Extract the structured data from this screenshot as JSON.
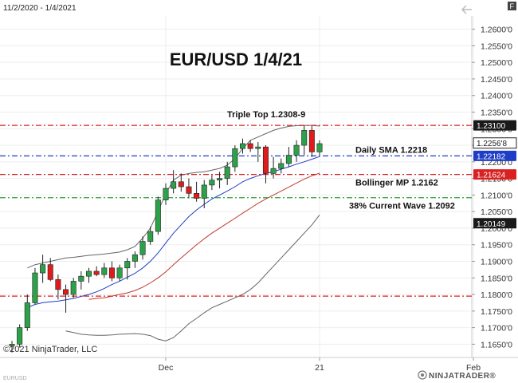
{
  "header": {
    "date_range": "11/2/2020 - 1/4/2021",
    "flag_label": "F"
  },
  "footer": {
    "copyright": "©2021 NinjaTrader, LLC",
    "logo": "NINJATRADER®",
    "watermark": "EURUSD"
  },
  "chart_data": {
    "type": "candlestick",
    "title": "EUR/USD 1/4/21",
    "y_range": [
      1.161,
      1.264
    ],
    "x_ticks": [
      {
        "label": "Dec",
        "index": 20
      },
      {
        "label": "21",
        "index": 40
      },
      {
        "label": "Feb",
        "index": 60
      }
    ],
    "y_ticks": [
      "1.2600'0",
      "1.2550'0",
      "1.2500'0",
      "1.2450'0",
      "1.2400'0",
      "1.2350'0",
      "1.2300'0",
      "1.2250'0",
      "1.2200'0",
      "1.2150'0",
      "1.2100'0",
      "1.2050'0",
      "1.2000'0",
      "1.1950'0",
      "1.1900'0",
      "1.1850'0",
      "1.1800'0",
      "1.1750'0",
      "1.1700'0",
      "1.1650'0"
    ],
    "y_tick_values": [
      1.26,
      1.255,
      1.25,
      1.245,
      1.24,
      1.235,
      1.23,
      1.225,
      1.22,
      1.215,
      1.21,
      1.205,
      1.2,
      1.195,
      1.19,
      1.185,
      1.18,
      1.175,
      1.17,
      1.165
    ],
    "candles": [
      {
        "o": 1.1645,
        "h": 1.166,
        "l": 1.1625,
        "c": 1.165
      },
      {
        "o": 1.165,
        "h": 1.171,
        "l": 1.164,
        "c": 1.17
      },
      {
        "o": 1.17,
        "h": 1.18,
        "l": 1.169,
        "c": 1.1775
      },
      {
        "o": 1.1775,
        "h": 1.188,
        "l": 1.177,
        "c": 1.1865
      },
      {
        "o": 1.1865,
        "h": 1.192,
        "l": 1.1835,
        "c": 1.189
      },
      {
        "o": 1.189,
        "h": 1.191,
        "l": 1.184,
        "c": 1.1845
      },
      {
        "o": 1.1845,
        "h": 1.186,
        "l": 1.1785,
        "c": 1.1815
      },
      {
        "o": 1.1815,
        "h": 1.183,
        "l": 1.1745,
        "c": 1.18
      },
      {
        "o": 1.18,
        "h": 1.185,
        "l": 1.179,
        "c": 1.184
      },
      {
        "o": 1.184,
        "h": 1.187,
        "l": 1.1815,
        "c": 1.1855
      },
      {
        "o": 1.1855,
        "h": 1.188,
        "l": 1.1835,
        "c": 1.187
      },
      {
        "o": 1.187,
        "h": 1.1885,
        "l": 1.1855,
        "c": 1.186
      },
      {
        "o": 1.186,
        "h": 1.1895,
        "l": 1.185,
        "c": 1.188
      },
      {
        "o": 1.188,
        "h": 1.19,
        "l": 1.184,
        "c": 1.185
      },
      {
        "o": 1.185,
        "h": 1.189,
        "l": 1.184,
        "c": 1.188
      },
      {
        "o": 1.188,
        "h": 1.191,
        "l": 1.1845,
        "c": 1.19
      },
      {
        "o": 1.19,
        "h": 1.193,
        "l": 1.188,
        "c": 1.192
      },
      {
        "o": 1.192,
        "h": 1.1975,
        "l": 1.1905,
        "c": 1.196
      },
      {
        "o": 1.196,
        "h": 1.2005,
        "l": 1.195,
        "c": 1.199
      },
      {
        "o": 1.199,
        "h": 1.2095,
        "l": 1.198,
        "c": 1.2085
      },
      {
        "o": 1.2085,
        "h": 1.2135,
        "l": 1.207,
        "c": 1.212
      },
      {
        "o": 1.212,
        "h": 1.2175,
        "l": 1.2105,
        "c": 1.214
      },
      {
        "o": 1.214,
        "h": 1.2165,
        "l": 1.211,
        "c": 1.2125
      },
      {
        "o": 1.2125,
        "h": 1.215,
        "l": 1.209,
        "c": 1.2105
      },
      {
        "o": 1.2105,
        "h": 1.214,
        "l": 1.208,
        "c": 1.209
      },
      {
        "o": 1.209,
        "h": 1.2145,
        "l": 1.206,
        "c": 1.213
      },
      {
        "o": 1.213,
        "h": 1.216,
        "l": 1.2115,
        "c": 1.2145
      },
      {
        "o": 1.2145,
        "h": 1.217,
        "l": 1.212,
        "c": 1.215
      },
      {
        "o": 1.215,
        "h": 1.22,
        "l": 1.213,
        "c": 1.2185
      },
      {
        "o": 1.2185,
        "h": 1.225,
        "l": 1.217,
        "c": 1.224
      },
      {
        "o": 1.224,
        "h": 1.227,
        "l": 1.2225,
        "c": 1.2255
      },
      {
        "o": 1.2255,
        "h": 1.2265,
        "l": 1.223,
        "c": 1.224
      },
      {
        "o": 1.224,
        "h": 1.226,
        "l": 1.22,
        "c": 1.2245
      },
      {
        "o": 1.2245,
        "h": 1.225,
        "l": 1.2135,
        "c": 1.2165
      },
      {
        "o": 1.2165,
        "h": 1.2215,
        "l": 1.215,
        "c": 1.218
      },
      {
        "o": 1.218,
        "h": 1.221,
        "l": 1.2165,
        "c": 1.2195
      },
      {
        "o": 1.2195,
        "h": 1.2245,
        "l": 1.2185,
        "c": 1.222
      },
      {
        "o": 1.222,
        "h": 1.2265,
        "l": 1.22,
        "c": 1.225
      },
      {
        "o": 1.225,
        "h": 1.231,
        "l": 1.222,
        "c": 1.2295
      },
      {
        "o": 1.2295,
        "h": 1.2308,
        "l": 1.2215,
        "c": 1.223
      },
      {
        "o": 1.223,
        "h": 1.2265,
        "l": 1.222,
        "c": 1.2255
      }
    ],
    "indicators": {
      "sma": {
        "color": "#1f3ec7",
        "values": [
          null,
          null,
          1.176,
          1.177,
          1.1775,
          1.1778,
          1.178,
          1.1784,
          1.1788,
          1.1794,
          1.18,
          1.1808,
          1.1818,
          1.183,
          1.184,
          1.1852,
          1.1864,
          1.188,
          1.19,
          1.1925,
          1.1955,
          1.1985,
          1.201,
          1.2035,
          1.2055,
          1.2072,
          1.2088,
          1.21,
          1.2112,
          1.2125,
          1.214,
          1.215,
          1.2158,
          1.2165,
          1.217,
          1.2178,
          1.2185,
          1.2193,
          1.22,
          1.2208,
          1.2216
        ]
      },
      "bollinger_upper": {
        "color": "#666666",
        "values": [
          null,
          null,
          1.188,
          1.189,
          1.1895,
          1.19,
          1.1905,
          1.191,
          1.1912,
          1.1915,
          1.1918,
          1.192,
          1.1922,
          1.1925,
          1.1928,
          1.1935,
          1.1945,
          1.197,
          1.2,
          1.205,
          1.2105,
          1.2145,
          1.216,
          1.2165,
          1.2168,
          1.217,
          1.2175,
          1.218,
          1.219,
          1.221,
          1.224,
          1.2265,
          1.2275,
          1.2285,
          1.2295,
          1.2302,
          1.2307,
          1.2309,
          1.231,
          1.231,
          1.2308
        ]
      },
      "bollinger_mid": {
        "color": "#c0392b",
        "values": [
          null,
          null,
          null,
          null,
          null,
          null,
          null,
          null,
          null,
          null,
          1.1785,
          1.1788,
          1.179,
          1.1795,
          1.18,
          1.1805,
          1.1812,
          1.1822,
          1.1835,
          1.185,
          1.1868,
          1.189,
          1.191,
          1.193,
          1.195,
          1.1968,
          1.1985,
          1.2,
          1.2015,
          1.203,
          1.2045,
          1.206,
          1.2075,
          1.2088,
          1.21,
          1.2112,
          1.2124,
          1.2136,
          1.2148,
          1.2158,
          1.2166
        ]
      },
      "bollinger_lower": {
        "color": "#666666",
        "values": [
          null,
          null,
          null,
          null,
          null,
          null,
          null,
          1.169,
          1.1685,
          1.168,
          1.1678,
          1.1677,
          1.1677,
          1.1678,
          1.168,
          1.1681,
          1.1682,
          1.168,
          1.1676,
          1.1665,
          1.166,
          1.167,
          1.169,
          1.1712,
          1.1728,
          1.1745,
          1.176,
          1.177,
          1.178,
          1.179,
          1.18,
          1.1815,
          1.1835,
          1.186,
          1.1885,
          1.191,
          1.1935,
          1.196,
          1.1985,
          1.201,
          1.204
        ]
      }
    },
    "levels": [
      {
        "value": 1.231,
        "color": "#d92121",
        "label": "Triple Top 1.2308-9",
        "badge": "1.23100",
        "badge_style": "dark"
      },
      {
        "value": 1.2218,
        "color": "#1f3ec7",
        "label": "Daily SMA 1.2218",
        "badge": "1.22182",
        "badge_style": "blue"
      },
      {
        "value": 1.2162,
        "color": "#d92121",
        "label": "Bollinger MP 1.2162",
        "badge": "1.21624",
        "badge_style": "red"
      },
      {
        "value": 1.2092,
        "color": "#2e9e3a",
        "label": "38% Current Wave 1.2092",
        "badge": "",
        "badge_style": "none"
      },
      {
        "value": 1.1795,
        "color": "#d92121",
        "label": "",
        "badge": "",
        "badge_style": "none"
      }
    ],
    "price_markers": [
      {
        "value": 1.22568,
        "label": "1.2256'8",
        "style": "outline"
      },
      {
        "value": 1.20149,
        "label": "1.20149",
        "style": "dark"
      }
    ]
  }
}
